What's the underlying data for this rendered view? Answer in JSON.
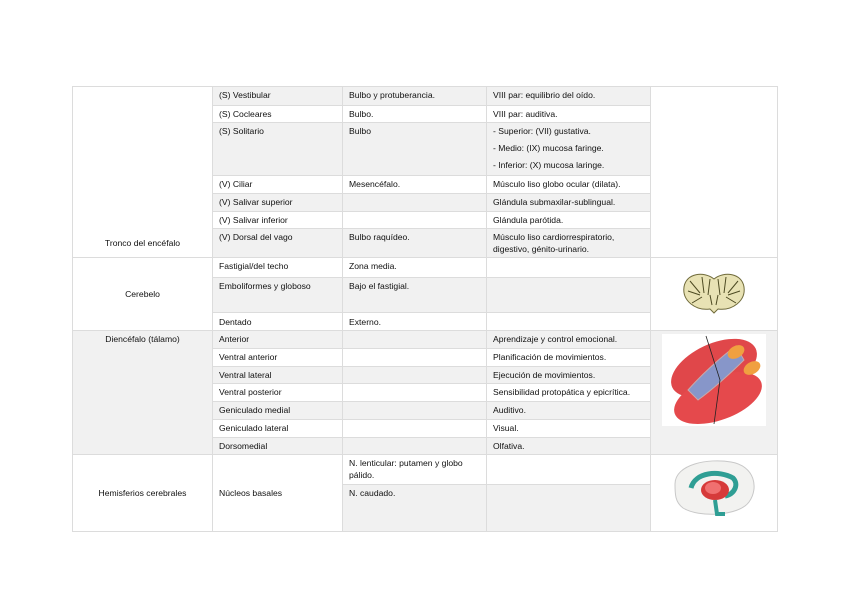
{
  "tronco": {
    "label": "Tronco del encéfalo",
    "rows": [
      {
        "nucleo": "(S) Vestibular",
        "ubicacion": "Bulbo y protuberancia.",
        "funcion": [
          "VIII par: equilibrio del oído."
        ]
      },
      {
        "nucleo": "(S) Cocleares",
        "ubicacion": "Bulbo.",
        "funcion": [
          "VIII par: auditiva."
        ]
      },
      {
        "nucleo": "(S) Solitario",
        "ubicacion": "Bulbo",
        "funcion": [
          "- Superior: (VII) gustativa.",
          "- Medio: (IX) mucosa faringe.",
          "- Inferior: (X) mucosa laringe."
        ]
      },
      {
        "nucleo": "(V) Ciliar",
        "ubicacion": "Mesencéfalo.",
        "funcion": [
          "Músculo liso globo ocular (dilata)."
        ]
      },
      {
        "nucleo": "(V) Salivar superior",
        "ubicacion": "",
        "funcion": [
          "Glándula submaxilar-sublingual."
        ]
      },
      {
        "nucleo": "(V) Salivar inferior",
        "ubicacion": "",
        "funcion": [
          "Glándula parótida."
        ]
      },
      {
        "nucleo": "(V) Dorsal del vago",
        "ubicacion": "Bulbo raquídeo.",
        "funcion": [
          "Músculo liso cardiorrespiratorio, digestivo, génito-urinario."
        ]
      }
    ]
  },
  "cerebelo": {
    "label": "Cerebelo",
    "image": "cerebellum-section-image",
    "rows": [
      {
        "nucleo": "Fastigial/del techo",
        "ubicacion": "Zona media.",
        "funcion": ""
      },
      {
        "nucleo": "Emboliformes y globoso",
        "ubicacion": "Bajo el fastigial.",
        "funcion": ""
      },
      {
        "nucleo": "Dentado",
        "ubicacion": "Externo.",
        "funcion": ""
      }
    ]
  },
  "diencefalo": {
    "label": "Diencéfalo (tálamo)",
    "image": "thalamus-image",
    "rows": [
      {
        "nucleo": "Anterior",
        "ubicacion": "",
        "funcion": "Aprendizaje y control emocional."
      },
      {
        "nucleo": "Ventral anterior",
        "ubicacion": "",
        "funcion": "Planificación de movimientos."
      },
      {
        "nucleo": "Ventral lateral",
        "ubicacion": "",
        "funcion": "Ejecución de movimientos."
      },
      {
        "nucleo": "Ventral posterior",
        "ubicacion": "",
        "funcion": "Sensibilidad protopática y epicrítica."
      },
      {
        "nucleo": "Geniculado medial",
        "ubicacion": "",
        "funcion": "Auditivo."
      },
      {
        "nucleo": "Geniculado lateral",
        "ubicacion": "",
        "funcion": "Visual."
      },
      {
        "nucleo": "Dorsomedial",
        "ubicacion": "",
        "funcion": "Olfativa."
      }
    ]
  },
  "hemisferios": {
    "label": "Hemisferios cerebrales",
    "nucleo": "Núcleos basales",
    "image": "basal-ganglia-image",
    "ubicaciones": [
      "N. lenticular: putamen y globo pálido.",
      "N. caudado."
    ]
  },
  "colors": {
    "shade": "#f1f1f1",
    "border": "#dcdcdc"
  }
}
